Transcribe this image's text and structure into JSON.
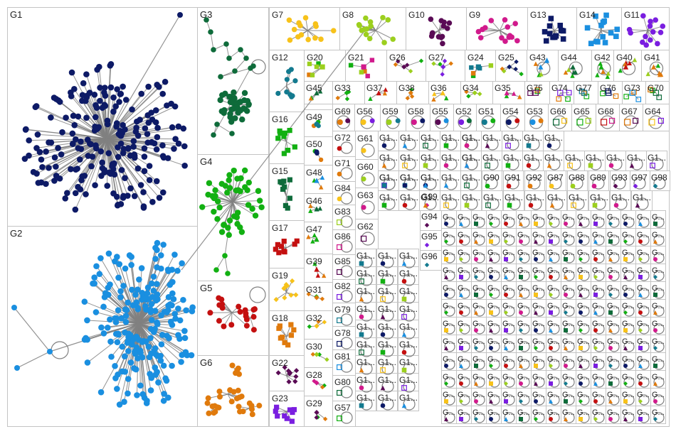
{
  "colors": {
    "background": "#ffffff",
    "border": "#c4c4c4",
    "edge": "#808080",
    "label": "#222222",
    "G1": "#0d1a66",
    "G2": "#1a8fe0",
    "G3": "#0e6b3a",
    "G4": "#12b012",
    "G5": "#c41010",
    "G6": "#e07a0c",
    "G7": "#f7c21a",
    "G8": "#9ccf1e",
    "G9": "#d11a8c",
    "G10": "#5a0b55",
    "G11": "#7a1ee0",
    "G12": "#137a8f",
    "G13": "#0d1a66",
    "G14": "#1a8fe0",
    "G15": "#0e6b3a",
    "G16": "#12b012",
    "G17": "#c41010",
    "G18": "#e07a0c",
    "G19": "#f7c21a",
    "G20": "#9ccf1e",
    "G21": "#d11a8c",
    "G22": "#5a0b55",
    "G23": "#7a1ee0",
    "G24": "#137a8f"
  },
  "groups": {
    "large": [
      "G1",
      "G2",
      "G3",
      "G4",
      "G5",
      "G6"
    ],
    "medium": [
      "G7",
      "G8",
      "G10",
      "G9",
      "G13",
      "G14",
      "G11",
      "G12",
      "G16",
      "G15",
      "G17",
      "G19",
      "G18",
      "G22",
      "G23"
    ],
    "row2": [
      "G20",
      "G21",
      "G26",
      "G27",
      "G24",
      "G25",
      "G43",
      "G44",
      "G42",
      "G40",
      "G41"
    ],
    "row3": [
      "G45",
      "G33",
      "G37",
      "G38",
      "G36",
      "G34",
      "G35",
      "G75",
      "G74",
      "G77",
      "G76",
      "G73",
      "G70"
    ],
    "row4": [
      "G69",
      "G56",
      "G59",
      "G58",
      "G55",
      "G52",
      "G51",
      "G54",
      "G53",
      "G66",
      "G65",
      "G68",
      "G67",
      "G64"
    ],
    "column_a": [
      "G49",
      "G50",
      "G48",
      "G46",
      "G47",
      "G39",
      "G31",
      "G32",
      "G30",
      "G28",
      "G29"
    ],
    "column_b": [
      "G72",
      "G71",
      "G84",
      "G83",
      "G86",
      "G85",
      "G82",
      "G79",
      "G78",
      "G81",
      "G80",
      "G57"
    ],
    "column_c": [
      "G61",
      "G60",
      "G63",
      "G62"
    ],
    "mid_row": [
      "G90",
      "G91",
      "G92",
      "G87",
      "G88",
      "G89",
      "G93",
      "G97",
      "G98"
    ],
    "small_named": [
      "G99",
      "G94",
      "G95",
      "G96"
    ],
    "truncated_wide": "G1...",
    "truncated_narrow": "G..."
  }
}
